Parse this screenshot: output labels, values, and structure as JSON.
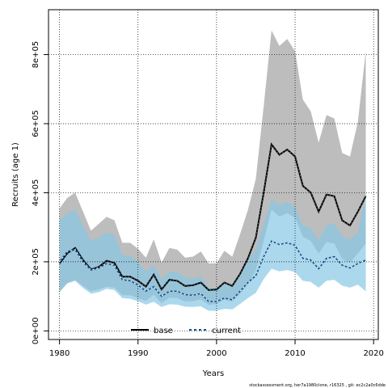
{
  "chart_data": {
    "type": "line",
    "xlabel": "Years",
    "ylabel": "Recruits (age 1)",
    "xlim": [
      1978.6,
      2020.6
    ],
    "ylim": [
      -25000,
      930000
    ],
    "x_ticks": [
      1980,
      1990,
      2000,
      2010,
      2020
    ],
    "x_tick_labels": [
      "1980",
      "1990",
      "2000",
      "2010",
      "2020"
    ],
    "y_ticks": [
      0,
      200000,
      400000,
      600000,
      800000
    ],
    "y_tick_labels": [
      "0e+00",
      "2e+05",
      "4e+05",
      "6e+05",
      "8e+05"
    ],
    "grid": true,
    "legend_position": "bottom-center",
    "footer_note": "stockassessment.org,  her7a1980clone,  r16325 ,  git:  ec2c2a0c6dde",
    "x": [
      1980,
      1981,
      1982,
      1983,
      1984,
      1985,
      1986,
      1987,
      1988,
      1989,
      1990,
      1991,
      1992,
      1993,
      1994,
      1995,
      1996,
      1997,
      1998,
      1999,
      2000,
      2001,
      2002,
      2003,
      2004,
      2005,
      2006,
      2007,
      2008,
      2009,
      2010,
      2011,
      2012,
      2013,
      2014,
      2015,
      2016,
      2017,
      2018,
      2019
    ],
    "series": [
      {
        "name": "base",
        "color": "#000000",
        "band_color": "#bdbdbd",
        "values": [
          195000,
          225000,
          240000,
          205000,
          178000,
          185000,
          203000,
          197000,
          157000,
          157000,
          145000,
          128000,
          163000,
          120000,
          148000,
          145000,
          130000,
          132000,
          140000,
          118000,
          120000,
          140000,
          130000,
          165000,
          210000,
          270000,
          400000,
          540000,
          510000,
          525000,
          505000,
          420000,
          400000,
          345000,
          395000,
          390000,
          320000,
          305000,
          345000,
          390000
        ],
        "lower": [
          112000,
          138000,
          147000,
          130000,
          115000,
          120000,
          128000,
          125000,
          103000,
          103000,
          95000,
          87000,
          105000,
          80000,
          96000,
          95000,
          85000,
          86000,
          91000,
          75000,
          78000,
          90000,
          85000,
          107000,
          136000,
          175000,
          260000,
          351000,
          331000,
          341000,
          328000,
          273000,
          260000,
          224000,
          257000,
          253000,
          208000,
          198000,
          224000,
          253000
        ],
        "upper": [
          355000,
          385000,
          400000,
          345000,
          290000,
          310000,
          330000,
          320000,
          255000,
          255000,
          238000,
          212000,
          265000,
          198000,
          240000,
          235000,
          212000,
          215000,
          230000,
          195000,
          196000,
          232000,
          215000,
          280000,
          350000,
          440000,
          650000,
          870000,
          825000,
          845000,
          810000,
          670000,
          635000,
          545000,
          625000,
          615000,
          515000,
          505000,
          605000,
          810000
        ]
      },
      {
        "name": "current",
        "color": "#0b4f8a",
        "band_color": "#87c7e6",
        "values": [
          200000,
          230000,
          235000,
          200000,
          176000,
          182000,
          195000,
          190000,
          148000,
          145000,
          133000,
          115000,
          128000,
          100000,
          115000,
          115000,
          105000,
          103000,
          108000,
          85000,
          85000,
          95000,
          90000,
          115000,
          140000,
          160000,
          215000,
          260000,
          250000,
          255000,
          248000,
          210000,
          205000,
          180000,
          210000,
          215000,
          190000,
          182000,
          195000,
          205000
        ],
        "lower": [
          115000,
          138000,
          145000,
          124000,
          108000,
          112000,
          122000,
          118000,
          95000,
          93000,
          86000,
          76000,
          84000,
          69000,
          77000,
          76000,
          70000,
          69000,
          71000,
          58000,
          58000,
          64000,
          62000,
          78000,
          95000,
          110000,
          150000,
          180000,
          172000,
          176000,
          170000,
          145000,
          142000,
          125000,
          145000,
          148000,
          131000,
          125000,
          134000,
          115000
        ],
        "upper": [
          320000,
          340000,
          352000,
          305000,
          262000,
          270000,
          285000,
          278000,
          220000,
          218000,
          200000,
          172000,
          190000,
          150000,
          172000,
          170000,
          155000,
          152000,
          158000,
          125000,
          125000,
          140000,
          135000,
          168000,
          205000,
          235000,
          312000,
          380000,
          365000,
          372000,
          360000,
          305000,
          298000,
          262000,
          305000,
          312000,
          275000,
          265000,
          285000,
          390000
        ]
      }
    ]
  }
}
